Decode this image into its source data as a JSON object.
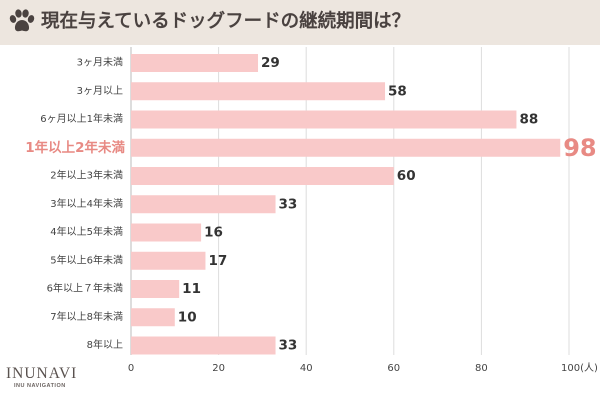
{
  "header": {
    "title": "現在与えているドッグフードの継続期間は？",
    "icon": "paw-icon",
    "background": "#ede6df"
  },
  "brand": {
    "name": "INUNAVI",
    "sub": "INU NAVIGATION"
  },
  "colors": {
    "bar": "#f9c9c9",
    "highlight_label": "#e88a84",
    "text": "#333333",
    "grid": "#dddddd"
  },
  "chart_data": {
    "type": "bar",
    "orientation": "horizontal",
    "title": "現在与えているドッグフードの継続期間は？",
    "categories": [
      "3ヶ月未満",
      "3ヶ月以上",
      "6ヶ月以上1年未満",
      "1年以上2年未満",
      "2年以上3年未満",
      "3年以上4年未満",
      "4年以上5年未満",
      "5年以上6年未満",
      "6年以上７年未満",
      "7年以上8年未満",
      "8年以上"
    ],
    "values": [
      29,
      58,
      88,
      98,
      60,
      33,
      16,
      17,
      11,
      10,
      33
    ],
    "highlight_index": 3,
    "xlim": [
      0,
      100
    ],
    "xticks": [
      "0",
      "20",
      "40",
      "60",
      "80",
      "100(人)"
    ],
    "xlabel": "",
    "ylabel": "",
    "grid": true
  }
}
